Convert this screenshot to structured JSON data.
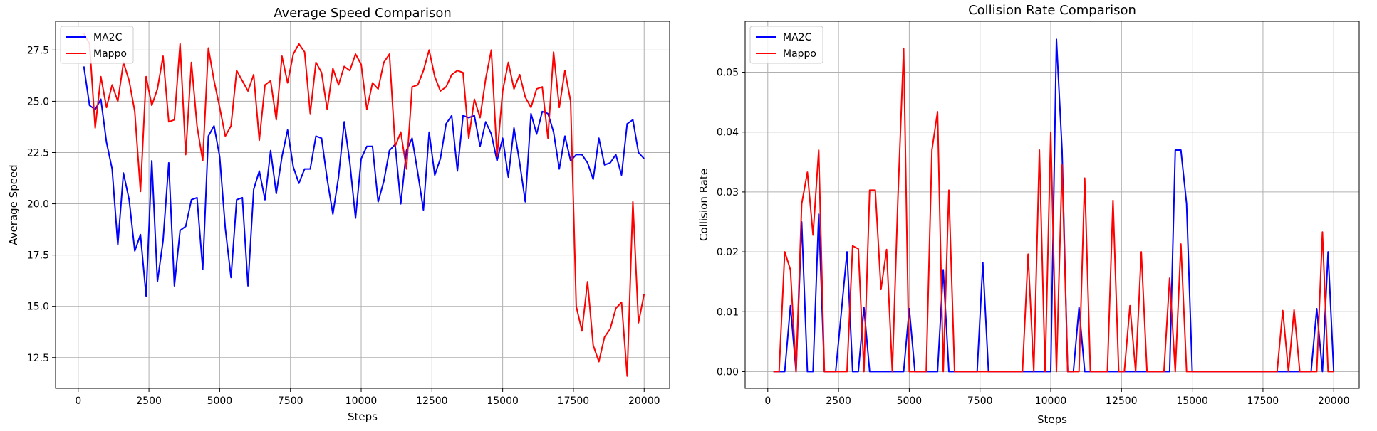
{
  "chart_data": [
    {
      "type": "line",
      "title": "Average Speed Comparison",
      "xlabel": "Steps",
      "ylabel": "Average Speed",
      "xlim": [
        -800,
        20900
      ],
      "ylim": [
        11.0,
        28.9
      ],
      "xticks": [
        0,
        2500,
        5000,
        7500,
        10000,
        12500,
        15000,
        17500,
        20000
      ],
      "yticks": [
        12.5,
        15.0,
        17.5,
        20.0,
        22.5,
        25.0,
        27.5
      ],
      "ytick_labels": [
        "12.5",
        "15.0",
        "17.5",
        "20.0",
        "22.5",
        "25.0",
        "27.5"
      ],
      "grid": true,
      "legend_position": "top-left",
      "series": [
        {
          "name": "MA2C",
          "color": "#0000ff",
          "x": [
            200,
            400,
            600,
            800,
            1000,
            1200,
            1400,
            1600,
            1800,
            2000,
            2200,
            2400,
            2600,
            2800,
            3000,
            3200,
            3400,
            3600,
            3800,
            4000,
            4200,
            4400,
            4600,
            4800,
            5000,
            5200,
            5400,
            5600,
            5800,
            6000,
            6200,
            6400,
            6600,
            6800,
            7000,
            7200,
            7400,
            7600,
            7800,
            8000,
            8200,
            8400,
            8600,
            8800,
            9000,
            9200,
            9400,
            9600,
            9800,
            10000,
            10200,
            10400,
            10600,
            10800,
            11000,
            11200,
            11400,
            11600,
            11800,
            12000,
            12200,
            12400,
            12600,
            12800,
            13000,
            13200,
            13400,
            13600,
            13800,
            14000,
            14200,
            14400,
            14600,
            14800,
            15000,
            15200,
            15400,
            15600,
            15800,
            16000,
            16200,
            16400,
            16600,
            16800,
            17000,
            17200,
            17400,
            17600,
            17800,
            18000,
            18200,
            18400,
            18600,
            18800,
            19000,
            19200,
            19400,
            19600,
            19800,
            20000
          ],
          "values": [
            26.7,
            24.8,
            24.6,
            25.1,
            23.0,
            21.7,
            18.0,
            21.5,
            20.2,
            17.7,
            18.5,
            15.5,
            22.1,
            16.2,
            18.2,
            22.0,
            16.0,
            18.7,
            18.9,
            20.2,
            20.3,
            16.8,
            23.3,
            23.8,
            22.3,
            18.8,
            16.4,
            20.2,
            20.3,
            16.0,
            20.7,
            21.6,
            20.2,
            22.6,
            20.5,
            22.3,
            23.6,
            21.8,
            21.0,
            21.7,
            21.7,
            23.3,
            23.2,
            21.2,
            19.5,
            21.3,
            24.0,
            22.0,
            19.3,
            22.2,
            22.8,
            22.8,
            20.1,
            21.1,
            22.6,
            22.9,
            20.0,
            22.6,
            23.2,
            21.5,
            19.7,
            23.5,
            21.4,
            22.2,
            23.9,
            24.3,
            21.6,
            24.3,
            24.2,
            24.3,
            22.8,
            24.0,
            23.4,
            22.1,
            23.2,
            21.3,
            23.7,
            22.0,
            20.1,
            24.4,
            23.4,
            24.5,
            24.4,
            23.5,
            21.7,
            23.3,
            22.1,
            22.4,
            22.4,
            22.0,
            21.2,
            23.2,
            21.9,
            22.0,
            22.4,
            21.4,
            23.9,
            24.1,
            22.5,
            22.2
          ]
        },
        {
          "name": "Mappo",
          "color": "#ff0000",
          "x": [
            200,
            400,
            600,
            800,
            1000,
            1200,
            1400,
            1600,
            1800,
            2000,
            2200,
            2400,
            2600,
            2800,
            3000,
            3200,
            3400,
            3600,
            3800,
            4000,
            4200,
            4400,
            4600,
            4800,
            5000,
            5200,
            5400,
            5600,
            5800,
            6000,
            6200,
            6400,
            6600,
            6800,
            7000,
            7200,
            7400,
            7600,
            7800,
            8000,
            8200,
            8400,
            8600,
            8800,
            9000,
            9200,
            9400,
            9600,
            9800,
            10000,
            10200,
            10400,
            10600,
            10800,
            11000,
            11200,
            11400,
            11600,
            11800,
            12000,
            12200,
            12400,
            12600,
            12800,
            13000,
            13200,
            13400,
            13600,
            13800,
            14000,
            14200,
            14400,
            14600,
            14800,
            15000,
            15200,
            15400,
            15600,
            15800,
            16000,
            16200,
            16400,
            16600,
            16800,
            17000,
            17200,
            17400,
            17600,
            17800,
            18000,
            18200,
            18400,
            18600,
            18800,
            19000,
            19200,
            19400,
            19600,
            19800,
            20000
          ],
          "values": [
            28.3,
            27.8,
            23.7,
            26.2,
            24.7,
            25.8,
            25.0,
            26.9,
            26.0,
            24.5,
            20.6,
            26.2,
            24.8,
            25.6,
            27.2,
            24.0,
            24.1,
            27.8,
            22.4,
            26.9,
            23.8,
            22.1,
            27.6,
            26.0,
            24.7,
            23.3,
            23.8,
            26.5,
            26.0,
            25.5,
            26.3,
            23.1,
            25.8,
            26.0,
            24.1,
            27.2,
            25.9,
            27.3,
            27.8,
            27.4,
            24.4,
            26.9,
            26.4,
            24.6,
            26.6,
            25.8,
            26.7,
            26.5,
            27.3,
            26.8,
            24.6,
            25.9,
            25.6,
            26.9,
            27.3,
            22.8,
            23.5,
            21.7,
            25.7,
            25.8,
            26.5,
            27.5,
            26.2,
            25.5,
            25.7,
            26.3,
            26.5,
            26.4,
            23.2,
            25.1,
            24.2,
            26.1,
            27.5,
            22.3,
            25.5,
            26.9,
            25.6,
            26.3,
            25.2,
            24.7,
            25.6,
            25.7,
            23.2,
            27.4,
            24.7,
            26.5,
            25.0,
            15.0,
            13.8,
            16.2,
            13.1,
            12.3,
            13.5,
            13.9,
            14.9,
            15.2,
            11.6,
            20.1,
            14.2,
            15.6
          ]
        }
      ]
    },
    {
      "type": "line",
      "title": "Collision Rate Comparison",
      "xlabel": "Steps",
      "ylabel": "Collision Rate",
      "xlim": [
        -800,
        20900
      ],
      "ylim": [
        -0.0028,
        0.0585
      ],
      "xticks": [
        0,
        2500,
        5000,
        7500,
        10000,
        12500,
        15000,
        17500,
        20000
      ],
      "yticks": [
        0.0,
        0.01,
        0.02,
        0.03,
        0.04,
        0.05
      ],
      "ytick_labels": [
        "0.00",
        "0.01",
        "0.02",
        "0.03",
        "0.04",
        "0.05"
      ],
      "grid": true,
      "legend_position": "top-left",
      "series": [
        {
          "name": "MA2C",
          "color": "#0000ff",
          "x": [
            200,
            400,
            600,
            800,
            1000,
            1200,
            1400,
            1600,
            1800,
            2000,
            2200,
            2400,
            2600,
            2800,
            3000,
            3200,
            3400,
            3600,
            3800,
            4000,
            4200,
            4400,
            4600,
            4800,
            5000,
            5200,
            5400,
            5600,
            5800,
            6000,
            6200,
            6400,
            6600,
            6800,
            7000,
            7200,
            7400,
            7600,
            7800,
            8000,
            8200,
            8400,
            8600,
            8800,
            9000,
            9200,
            9400,
            9600,
            9800,
            10000,
            10200,
            10400,
            10600,
            10800,
            11000,
            11200,
            11400,
            11600,
            11800,
            12000,
            12200,
            12400,
            12600,
            12800,
            13000,
            13200,
            13400,
            13600,
            13800,
            14000,
            14200,
            14400,
            14600,
            14800,
            15000,
            15200,
            15400,
            15600,
            15800,
            16000,
            16200,
            16400,
            16600,
            16800,
            17000,
            17200,
            17400,
            17600,
            17800,
            18000,
            18200,
            18400,
            18600,
            18800,
            19000,
            19200,
            19400,
            19600,
            19800,
            20000
          ],
          "values": [
            0,
            0,
            0,
            0.011,
            0,
            0.025,
            0,
            0,
            0.0263,
            0,
            0,
            0,
            0.01,
            0.02,
            0,
            0,
            0.0107,
            0,
            0,
            0,
            0,
            0,
            0,
            0,
            0.0105,
            0,
            0,
            0,
            0,
            0,
            0.017,
            0,
            0,
            0,
            0,
            0,
            0,
            0.0182,
            0,
            0,
            0,
            0,
            0,
            0,
            0,
            0,
            0,
            0,
            0,
            0,
            0.0555,
            0.037,
            0,
            0,
            0.0107,
            0,
            0,
            0,
            0,
            0,
            0,
            0,
            0,
            0,
            0,
            0,
            0,
            0,
            0,
            0,
            0,
            0.037,
            0.037,
            0.028,
            0,
            0,
            0,
            0,
            0,
            0,
            0,
            0,
            0,
            0,
            0,
            0,
            0,
            0,
            0,
            0,
            0,
            0,
            0,
            0,
            0,
            0,
            0.0105,
            0,
            0.02,
            0
          ]
        },
        {
          "name": "Mappo",
          "color": "#ff0000",
          "x": [
            200,
            400,
            600,
            800,
            1000,
            1200,
            1400,
            1600,
            1800,
            2000,
            2200,
            2400,
            2600,
            2800,
            3000,
            3200,
            3400,
            3600,
            3800,
            4000,
            4200,
            4400,
            4600,
            4800,
            5000,
            5200,
            5400,
            5600,
            5800,
            6000,
            6200,
            6400,
            6600,
            6800,
            7000,
            7200,
            7400,
            7600,
            7800,
            8000,
            8200,
            8400,
            8600,
            8800,
            9000,
            9200,
            9400,
            9600,
            9800,
            10000,
            10200,
            10400,
            10600,
            10800,
            11000,
            11200,
            11400,
            11600,
            11800,
            12000,
            12200,
            12400,
            12600,
            12800,
            13000,
            13200,
            13400,
            13600,
            13800,
            14000,
            14200,
            14400,
            14600,
            14800,
            15000,
            15200,
            15400,
            15600,
            15800,
            16000,
            16200,
            16400,
            16600,
            16800,
            17000,
            17200,
            17400,
            17600,
            17800,
            18000,
            18200,
            18400,
            18600,
            18800,
            19000,
            19200,
            19400,
            19600,
            19800,
            20000
          ],
          "values": [
            0,
            0,
            0.02,
            0.017,
            0,
            0.028,
            0.0333,
            0.0228,
            0.037,
            0,
            0,
            0,
            0,
            0,
            0.021,
            0.0205,
            0,
            0.0303,
            0.0303,
            0.0137,
            0.0204,
            0,
            0.029,
            0.054,
            0.0,
            0,
            0,
            0,
            0.037,
            0.0434,
            0,
            0.0303,
            0,
            0,
            0,
            0,
            0,
            0,
            0,
            0,
            0,
            0,
            0,
            0,
            0,
            0.0196,
            0,
            0.037,
            0,
            0.04,
            0,
            0.0345,
            0,
            0,
            0,
            0.0323,
            0,
            0,
            0,
            0,
            0.0286,
            0,
            0,
            0.011,
            0,
            0.02,
            0,
            0,
            0,
            0,
            0.0156,
            0,
            0.0213,
            0,
            0,
            0,
            0,
            0,
            0,
            0,
            0,
            0,
            0,
            0,
            0,
            0,
            0,
            0,
            0,
            0,
            0.0102,
            0,
            0.0103,
            0,
            0,
            0,
            0,
            0.0233,
            0,
            0
          ]
        }
      ]
    }
  ]
}
